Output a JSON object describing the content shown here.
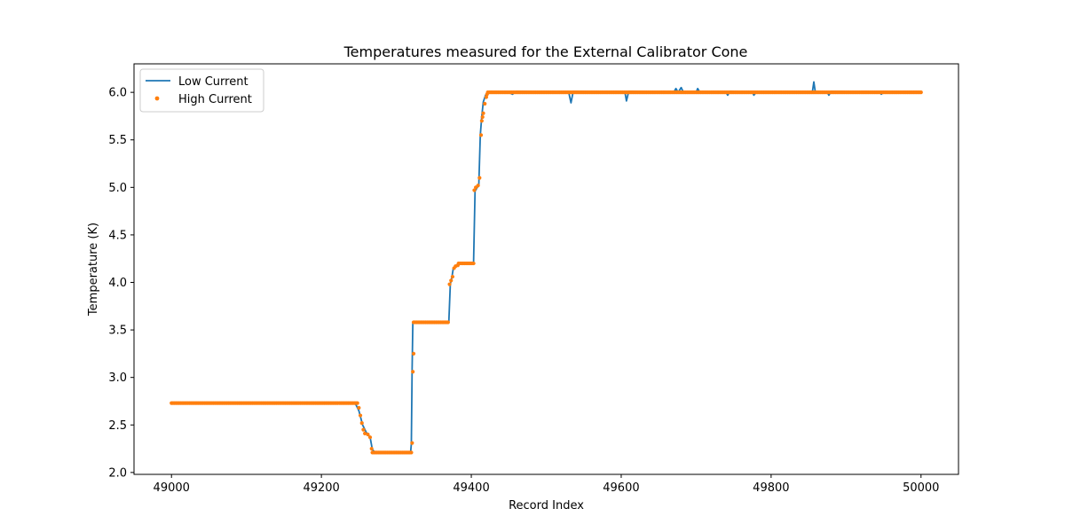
{
  "chart_data": {
    "type": "line",
    "title": "Temperatures measured for the External Calibrator Cone",
    "xlabel": "Record Index",
    "ylabel": "Temperature (K)",
    "xlim": [
      48950,
      50050
    ],
    "ylim": [
      1.98,
      6.3
    ],
    "xticks": [
      49000,
      49200,
      49400,
      49600,
      49800,
      50000
    ],
    "yticks": [
      2.0,
      2.5,
      3.0,
      3.5,
      4.0,
      4.5,
      5.0,
      5.5,
      6.0
    ],
    "xtick_labels": [
      "49000",
      "49200",
      "49400",
      "49600",
      "49800",
      "50000"
    ],
    "ytick_labels": [
      "2.0",
      "2.5",
      "3.0",
      "3.5",
      "4.0",
      "4.5",
      "5.0",
      "5.5",
      "6.0"
    ],
    "legend_position": "top-left",
    "grid": false,
    "series": [
      {
        "name": "Low Current",
        "style": "line",
        "color": "#1f77b4",
        "points": [
          [
            49000,
            2.73
          ],
          [
            49245,
            2.73
          ],
          [
            49250,
            2.65
          ],
          [
            49255,
            2.5
          ],
          [
            49260,
            2.42
          ],
          [
            49265,
            2.37
          ],
          [
            49268,
            2.24
          ],
          [
            49272,
            2.21
          ],
          [
            49319,
            2.21
          ],
          [
            49320,
            2.3
          ],
          [
            49321,
            3.07
          ],
          [
            49322,
            3.58
          ],
          [
            49370,
            3.58
          ],
          [
            49372,
            3.98
          ],
          [
            49374,
            4.05
          ],
          [
            49376,
            4.15
          ],
          [
            49380,
            4.18
          ],
          [
            49386,
            4.2
          ],
          [
            49403,
            4.2
          ],
          [
            49405,
            4.96
          ],
          [
            49408,
            5.0
          ],
          [
            49410,
            5.02
          ],
          [
            49412,
            5.55
          ],
          [
            49414,
            5.75
          ],
          [
            49416,
            5.9
          ],
          [
            49419,
            5.97
          ],
          [
            49422,
            6.0
          ],
          [
            49450,
            6.0
          ],
          [
            49455,
            5.98
          ],
          [
            49460,
            6.01
          ],
          [
            49530,
            6.0
          ],
          [
            49533,
            5.89
          ],
          [
            49536,
            6.01
          ],
          [
            49605,
            6.0
          ],
          [
            49607,
            5.91
          ],
          [
            49610,
            6.01
          ],
          [
            49670,
            6.0
          ],
          [
            49673,
            6.04
          ],
          [
            49676,
            6.0
          ],
          [
            49680,
            6.05
          ],
          [
            49683,
            6.0
          ],
          [
            49700,
            6.0
          ],
          [
            49702,
            6.04
          ],
          [
            49705,
            6.0
          ],
          [
            49740,
            6.0
          ],
          [
            49742,
            5.97
          ],
          [
            49745,
            6.01
          ],
          [
            49775,
            6.0
          ],
          [
            49777,
            5.97
          ],
          [
            49780,
            6.0
          ],
          [
            49855,
            6.0
          ],
          [
            49857,
            6.11
          ],
          [
            49859,
            6.0
          ],
          [
            49875,
            6.0
          ],
          [
            49877,
            5.97
          ],
          [
            49880,
            6.01
          ],
          [
            49945,
            6.0
          ],
          [
            49947,
            5.98
          ],
          [
            49950,
            6.0
          ],
          [
            50000,
            6.0
          ]
        ]
      },
      {
        "name": "High Current",
        "style": "scatter",
        "color": "#ff7f0e",
        "points": [
          [
            49250,
            2.68
          ],
          [
            49252,
            2.6
          ],
          [
            49254,
            2.52
          ],
          [
            49256,
            2.45
          ],
          [
            49258,
            2.41
          ],
          [
            49262,
            2.4
          ],
          [
            49265,
            2.37
          ],
          [
            49267,
            2.25
          ],
          [
            49321,
            2.31
          ],
          [
            49322,
            3.06
          ],
          [
            49323,
            3.25
          ],
          [
            49371,
            3.98
          ],
          [
            49373,
            4.02
          ],
          [
            49375,
            4.06
          ],
          [
            49377,
            4.15
          ],
          [
            49379,
            4.17
          ],
          [
            49382,
            4.18
          ],
          [
            49404,
            4.97
          ],
          [
            49406,
            5.0
          ],
          [
            49409,
            5.02
          ],
          [
            49411,
            5.1
          ],
          [
            49413,
            5.55
          ],
          [
            49414,
            5.7
          ],
          [
            49415,
            5.74
          ],
          [
            49416,
            5.78
          ],
          [
            49418,
            5.88
          ],
          [
            49420,
            5.95
          ],
          [
            49421,
            5.98
          ]
        ],
        "segments": [
          {
            "x_start": 49000,
            "x_end": 49248,
            "y": 2.73
          },
          {
            "x_start": 49268,
            "x_end": 49320,
            "y": 2.21
          },
          {
            "x_start": 49323,
            "x_end": 49370,
            "y": 3.58
          },
          {
            "x_start": 49383,
            "x_end": 49403,
            "y": 4.2
          },
          {
            "x_start": 49422,
            "x_end": 50000,
            "y": 6.0
          }
        ]
      }
    ]
  }
}
